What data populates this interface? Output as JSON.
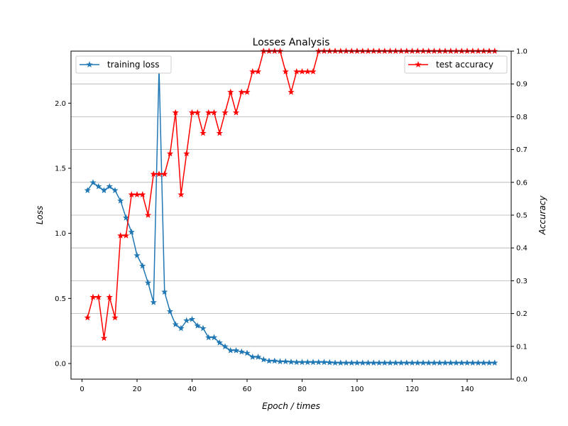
{
  "chart_data": {
    "type": "line",
    "title": "Losses Analysis",
    "xlabel": "Epoch / times",
    "ylabel_left": "Loss",
    "ylabel_right": "Accuracy",
    "xlim": [
      -4,
      156
    ],
    "ylim_left": [
      -0.12,
      2.4
    ],
    "ylim_right": [
      0,
      1
    ],
    "xticks": [
      0,
      20,
      40,
      60,
      80,
      100,
      120,
      140
    ],
    "yticks_left": [
      0.0,
      0.5,
      1.0,
      1.5,
      2.0
    ],
    "yticks_right": [
      0.0,
      0.1,
      0.2,
      0.3,
      0.4,
      0.5,
      0.6,
      0.7,
      0.8,
      0.9,
      1.0
    ],
    "ytick_labels_left": [
      "0.0",
      "0.5",
      "1.0",
      "1.5",
      "2.0"
    ],
    "ytick_labels_right": [
      "0.0",
      "0.1",
      "0.2",
      "0.3",
      "0.4",
      "0.5",
      "0.6",
      "0.7",
      "0.8",
      "0.9",
      "1.0"
    ],
    "grid": "right-axis horizontal",
    "series": [
      {
        "name": "training loss",
        "axis": "left",
        "color": "#1f77b4",
        "legend": "top-left",
        "x": [
          2,
          4,
          6,
          8,
          10,
          12,
          14,
          16,
          18,
          20,
          22,
          24,
          26,
          28,
          30,
          32,
          34,
          36,
          38,
          40,
          42,
          44,
          46,
          48,
          50,
          52,
          54,
          56,
          58,
          60,
          62,
          64,
          66,
          68,
          70,
          72,
          74,
          76,
          78,
          80,
          82,
          84,
          86,
          88,
          90,
          92,
          94,
          96,
          98,
          100,
          102,
          104,
          106,
          108,
          110,
          112,
          114,
          116,
          118,
          120,
          122,
          124,
          126,
          128,
          130,
          132,
          134,
          136,
          138,
          140,
          142,
          144,
          146,
          148,
          150
        ],
        "values": [
          1.33,
          1.39,
          1.36,
          1.33,
          1.36,
          1.33,
          1.25,
          1.12,
          1.01,
          0.83,
          0.75,
          0.62,
          0.47,
          2.27,
          0.55,
          0.4,
          0.3,
          0.27,
          0.33,
          0.34,
          0.29,
          0.27,
          0.2,
          0.2,
          0.16,
          0.13,
          0.1,
          0.1,
          0.09,
          0.08,
          0.05,
          0.05,
          0.03,
          0.02,
          0.02,
          0.015,
          0.015,
          0.012,
          0.01,
          0.01,
          0.01,
          0.01,
          0.01,
          0.01,
          0.008,
          0.005,
          0.005,
          0.005,
          0.005,
          0.005,
          0.005,
          0.005,
          0.005,
          0.005,
          0.005,
          0.005,
          0.005,
          0.005,
          0.005,
          0.005,
          0.005,
          0.005,
          0.005,
          0.005,
          0.005,
          0.005,
          0.005,
          0.005,
          0.005,
          0.005,
          0.005,
          0.005,
          0.005,
          0.005,
          0.005
        ]
      },
      {
        "name": "test accuracy",
        "axis": "right",
        "color": "#ff0000",
        "legend": "top-right",
        "x": [
          2,
          4,
          6,
          8,
          10,
          12,
          14,
          16,
          18,
          20,
          22,
          24,
          26,
          28,
          30,
          32,
          34,
          36,
          38,
          40,
          42,
          44,
          46,
          48,
          50,
          52,
          54,
          56,
          58,
          60,
          62,
          64,
          66,
          68,
          70,
          72,
          74,
          76,
          78,
          80,
          82,
          84,
          86,
          88,
          90,
          92,
          94,
          96,
          98,
          100,
          102,
          104,
          106,
          108,
          110,
          112,
          114,
          116,
          118,
          120,
          122,
          124,
          126,
          128,
          130,
          132,
          134,
          136,
          138,
          140,
          142,
          144,
          146,
          148,
          150
        ],
        "values": [
          0.1875,
          0.25,
          0.25,
          0.125,
          0.25,
          0.1875,
          0.4375,
          0.4375,
          0.5625,
          0.5625,
          0.5625,
          0.5,
          0.625,
          0.625,
          0.625,
          0.6875,
          0.8125,
          0.5625,
          0.6875,
          0.8125,
          0.8125,
          0.75,
          0.8125,
          0.8125,
          0.75,
          0.8125,
          0.875,
          0.8125,
          0.875,
          0.875,
          0.9375,
          0.9375,
          1.0,
          1.0,
          1.0,
          1.0,
          0.9375,
          0.875,
          0.9375,
          0.9375,
          0.9375,
          0.9375,
          1.0,
          1.0,
          1.0,
          1.0,
          1.0,
          1.0,
          1.0,
          1.0,
          1.0,
          1.0,
          1.0,
          1.0,
          1.0,
          1.0,
          1.0,
          1.0,
          1.0,
          1.0,
          1.0,
          1.0,
          1.0,
          1.0,
          1.0,
          1.0,
          1.0,
          1.0,
          1.0,
          1.0,
          1.0,
          1.0,
          1.0,
          1.0,
          1.0
        ]
      }
    ]
  }
}
